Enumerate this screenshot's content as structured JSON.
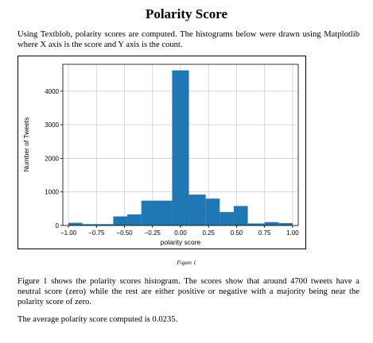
{
  "document": {
    "title": "Polarity Score",
    "intro": "Using Textblob, polarity scores are computed. The histograms below were drawn using Matplotlib where X axis is the score and Y axis is the count.",
    "figure_caption": "Figure 1",
    "body_paragraph_1": "Figure 1 shows the polarity scores histogram. The scores show that around 4700 tweets have a neutral score (zero) while the rest are either positive or negative with a majority being near the polarity score of zero.",
    "body_paragraph_2": "The average polarity score computed is 0.0235."
  },
  "chart_data": {
    "type": "bar",
    "xlabel": "polarity score",
    "ylabel": "Number of Tweets",
    "xlim": [
      -1.05,
      1.05
    ],
    "ylim": [
      0,
      4800
    ],
    "x_ticks": [
      "−1.00",
      "−0.75",
      "−0.50",
      "−0.25",
      "0.00",
      "0.25",
      "0.50",
      "0.75",
      "1.00"
    ],
    "x_tick_values": [
      -1.0,
      -0.75,
      -0.5,
      -0.25,
      0.0,
      0.25,
      0.5,
      0.75,
      1.0
    ],
    "y_ticks": [
      "0",
      "1000",
      "2000",
      "3000",
      "4000"
    ],
    "y_tick_values": [
      0,
      1000,
      2000,
      3000,
      4000
    ],
    "grid": true,
    "bar_color": "#1f77b4",
    "bins": [
      {
        "x0": -1.0,
        "x1": -0.875,
        "value": 80
      },
      {
        "x0": -0.875,
        "x1": -0.6,
        "value": 40
      },
      {
        "x0": -0.6,
        "x1": -0.475,
        "value": 270
      },
      {
        "x0": -0.475,
        "x1": -0.35,
        "value": 330
      },
      {
        "x0": -0.35,
        "x1": -0.075,
        "value": 740
      },
      {
        "x0": -0.075,
        "x1": 0.075,
        "value": 4620
      },
      {
        "x0": 0.075,
        "x1": 0.225,
        "value": 920
      },
      {
        "x0": 0.225,
        "x1": 0.35,
        "value": 800
      },
      {
        "x0": 0.35,
        "x1": 0.475,
        "value": 400
      },
      {
        "x0": 0.475,
        "x1": 0.6,
        "value": 580
      },
      {
        "x0": 0.6,
        "x1": 0.75,
        "value": 60
      },
      {
        "x0": 0.75,
        "x1": 0.875,
        "value": 100
      },
      {
        "x0": 0.875,
        "x1": 1.0,
        "value": 70
      }
    ]
  }
}
